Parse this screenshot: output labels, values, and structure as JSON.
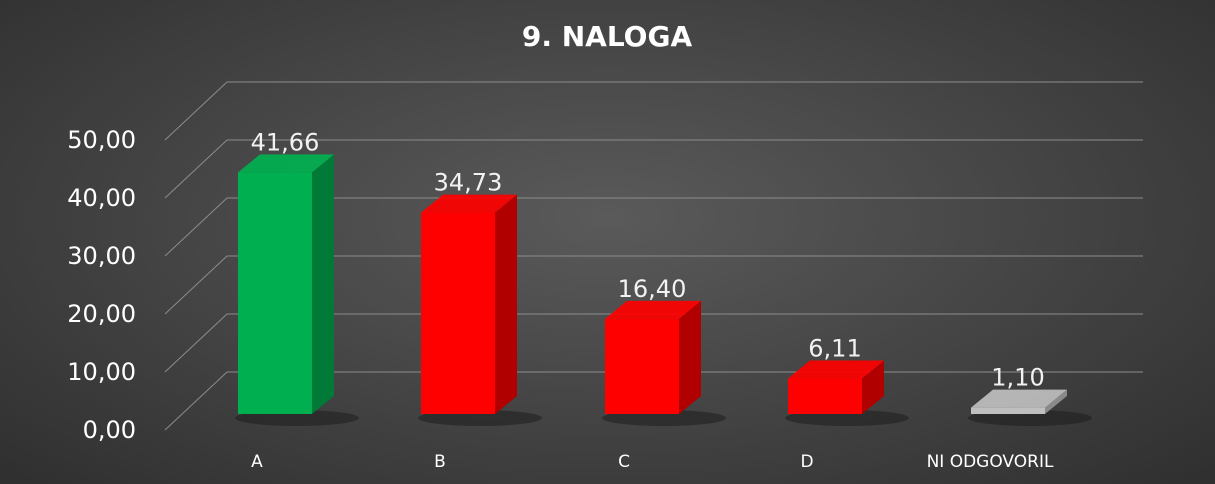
{
  "chart_data": {
    "type": "bar",
    "title": "9. NALOGA",
    "categories": [
      "A",
      "B",
      "C",
      "D",
      "NI ODGOVORIL"
    ],
    "values": [
      41.66,
      34.73,
      16.4,
      6.11,
      1.1
    ],
    "value_labels": [
      "41,66",
      "34,73",
      "16,40",
      "6,11",
      "1,10"
    ],
    "y_ticks": [
      "0,00",
      "10,00",
      "20,00",
      "30,00",
      "40,00",
      "50,00"
    ],
    "ylim": [
      0,
      50
    ],
    "three_d": true,
    "grid": true,
    "legend": "none",
    "colors": {
      "A": "#00b050",
      "B": "#ff0000",
      "C": "#ff0000",
      "D": "#ff0000",
      "NI ODGOVORIL": "#bfbfbf"
    },
    "side_colors": {
      "A": "#007a36",
      "B": "#b00000",
      "C": "#b00000",
      "D": "#b00000",
      "NI ODGOVORIL": "#8a8a8a"
    }
  }
}
